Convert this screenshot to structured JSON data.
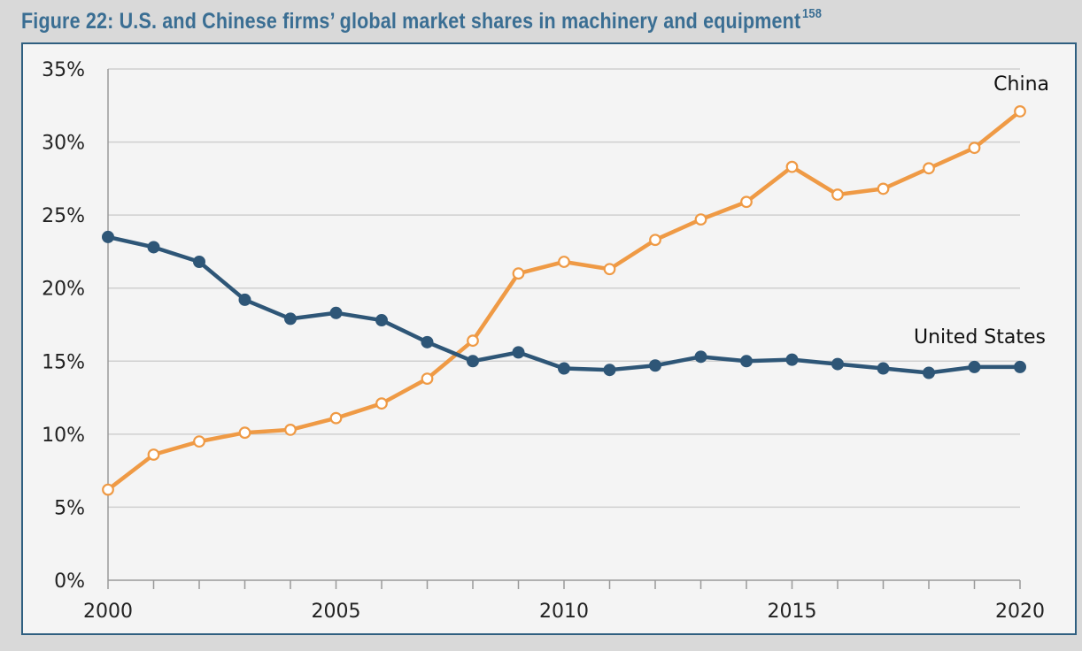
{
  "figure": {
    "title": "Figure 22: U.S. and Chinese firms’ global market shares in machinery and equipment",
    "footnote": "158"
  },
  "colors": {
    "china": "#ef9a45",
    "us": "#2e5677",
    "grid": "#cfcfcf",
    "axis": "#999999"
  },
  "chart_data": {
    "type": "line",
    "title": "U.S. and Chinese firms’ global market shares in machinery and equipment",
    "xlabel": "",
    "ylabel": "",
    "x": [
      2000,
      2001,
      2002,
      2003,
      2004,
      2005,
      2006,
      2007,
      2008,
      2009,
      2010,
      2011,
      2012,
      2013,
      2014,
      2015,
      2016,
      2017,
      2018,
      2019,
      2020
    ],
    "xlim": [
      2000,
      2020
    ],
    "ylim": [
      0,
      35
    ],
    "x_ticks": [
      2000,
      2005,
      2010,
      2015,
      2020
    ],
    "x_tick_labels": [
      "2000",
      "2005",
      "2010",
      "2015",
      "2020"
    ],
    "y_ticks": [
      0,
      5,
      10,
      15,
      20,
      25,
      30,
      35
    ],
    "y_tick_labels": [
      "0%",
      "5%",
      "10%",
      "15%",
      "20%",
      "25%",
      "30%",
      "35%"
    ],
    "grid": true,
    "series": [
      {
        "name": "China",
        "marker": "open-circle",
        "values": [
          6.2,
          8.6,
          9.5,
          10.1,
          10.3,
          11.1,
          12.1,
          13.8,
          16.4,
          21.0,
          21.8,
          21.3,
          23.3,
          24.7,
          25.9,
          28.3,
          26.4,
          26.8,
          28.2,
          29.6,
          32.1
        ]
      },
      {
        "name": "United States",
        "marker": "filled-circle",
        "values": [
          23.5,
          22.8,
          21.8,
          19.2,
          17.9,
          18.3,
          17.8,
          16.3,
          15.0,
          15.6,
          14.5,
          14.4,
          14.7,
          15.3,
          15.0,
          15.1,
          14.8,
          14.5,
          14.2,
          14.6,
          14.6
        ]
      }
    ]
  }
}
